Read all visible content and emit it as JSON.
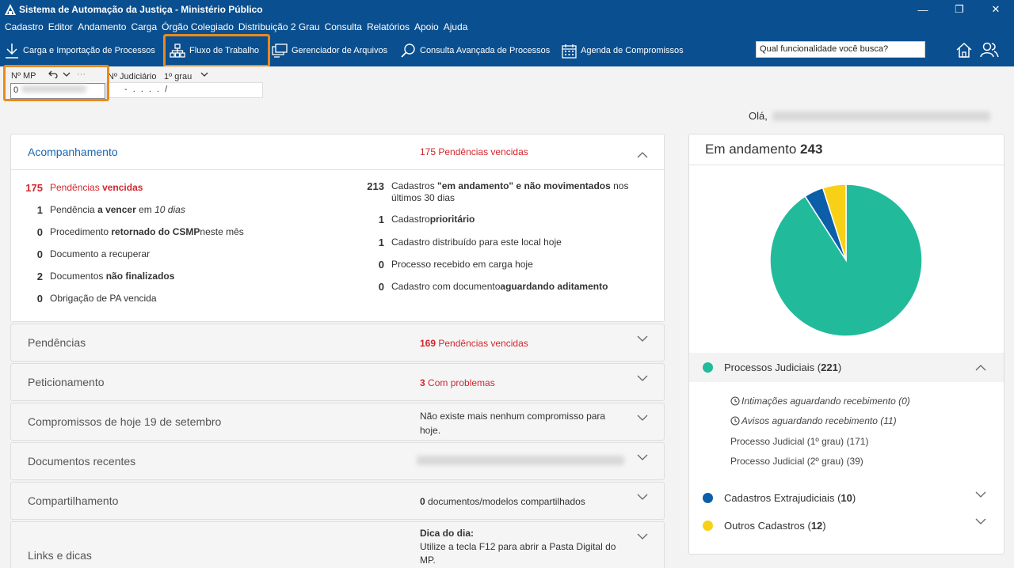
{
  "window": {
    "title": "Sistema de Automação da Justiça - Ministério Público",
    "controls": {
      "minimize": "—",
      "restore": "❐",
      "close": "✕"
    }
  },
  "menu": [
    "Cadastro",
    "Editor",
    "Andamento",
    "Carga",
    "Órgão Colegiado",
    "Distribuição 2 Grau",
    "Consulta",
    "Relatórios",
    "Apoio",
    "Ajuda"
  ],
  "toolbar": {
    "carga": "Carga e Importação de Processos",
    "fluxo": "Fluxo de Trabalho",
    "gerenciador": "Gerenciador de Arquivos",
    "consulta": "Consulta Avançada de Processos",
    "agenda": "Agenda de Compromissos",
    "search_placeholder": "Qual funcionalidade você busca?"
  },
  "fields": {
    "mp_label": "Nº MP",
    "mp_value": "0",
    "more": "···",
    "jud_label": "Nº Judiciário",
    "grau": "1º grau",
    "jud_mask": "- .  . . .   /"
  },
  "greeting": "Olá,",
  "left": {
    "acompanhamento": {
      "title": "Acompanhamento",
      "summary_num": "175",
      "summary_text": "Pendências vencidas",
      "left_rows": [
        {
          "num": "175",
          "pre": "Pendências ",
          "bold": "vencidas",
          "post": ""
        },
        {
          "num": "1",
          "pre": "Pendência ",
          "bold": "a vencer",
          "post": " em ",
          "italic": "10 dias"
        },
        {
          "num": "0",
          "pre": "Procedimento ",
          "bold": "retornado do CSMP",
          "post": " neste mês"
        },
        {
          "num": "0",
          "pre": "Documento a recuperar",
          "bold": "",
          "post": ""
        },
        {
          "num": "2",
          "pre": "Documentos ",
          "bold": "não finalizados",
          "post": ""
        },
        {
          "num": "0",
          "pre": "Obrigação de PA vencida",
          "bold": "",
          "post": ""
        }
      ],
      "right_rows": [
        {
          "num": "213",
          "pre": "Cadastros ",
          "bold": "\"em andamento\" e não movimentados",
          "post": " nos",
          "line2": "últimos 30 dias"
        },
        {
          "num": "1",
          "pre": "Cadastro ",
          "bold": "prioritário",
          "post": ""
        },
        {
          "num": "1",
          "pre": "Cadastro distribuído para este local hoje",
          "bold": "",
          "post": ""
        },
        {
          "num": "0",
          "pre": "Processo recebido em carga hoje",
          "bold": "",
          "post": ""
        },
        {
          "num": "0",
          "pre": "Cadastro com documento ",
          "bold": "aguardando aditamento",
          "post": ""
        }
      ]
    },
    "pendencias": {
      "title": "Pendências",
      "num": "169",
      "text": "Pendências vencidas"
    },
    "peticionamento": {
      "title": "Peticionamento",
      "num": "3",
      "text": "Com problemas"
    },
    "compromissos": {
      "title": "Compromissos de hoje 19 de setembro",
      "line1": "Não existe mais nenhum compromisso para",
      "line2": "hoje."
    },
    "documentos": {
      "title": "Documentos recentes"
    },
    "compartilhamento": {
      "title": "Compartilhamento",
      "num": "0",
      "text": "documentos/modelos compartilhados"
    },
    "links": {
      "title": "Links e dicas",
      "dica_title": "Dica do dia:",
      "line1": "Utilize a tecla F12 para abrir a Pasta Digital do",
      "line2": "MP."
    }
  },
  "right": {
    "title": "Em andamento",
    "total": "243",
    "colors": {
      "judiciais": "#21bb9b",
      "extrajudiciais": "#0c5ea8",
      "outros": "#f8d117"
    },
    "chart_data": {
      "type": "pie",
      "categories": [
        "Processos Judiciais",
        "Cadastros Extrajudiciais",
        "Outros Cadastros"
      ],
      "values": [
        221,
        10,
        12
      ]
    },
    "judiciais": {
      "label": "Processos Judiciais",
      "count": "221"
    },
    "sub_items": [
      "Intimações aguardando recebimento (0)",
      "Avisos aguardando recebimento (11)",
      "Processo Judicial (1º grau) (171)",
      "Processo Judicial (2º grau) (39)"
    ],
    "extrajudiciais": {
      "label": "Cadastros Extrajudiciais",
      "count": "10"
    },
    "outros": {
      "label": "Outros Cadastros",
      "count": "12"
    }
  }
}
